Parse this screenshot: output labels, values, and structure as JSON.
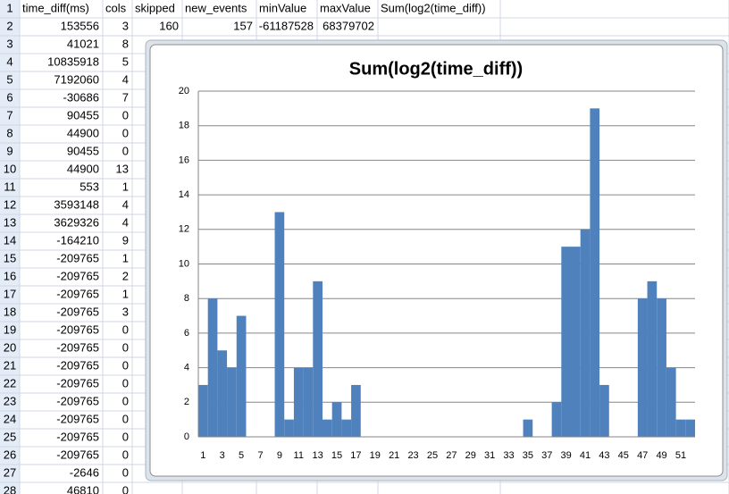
{
  "sheet": {
    "rows": [
      {
        "number": 1,
        "cells": [
          "time_diff(ms)",
          "cols",
          "skipped",
          "new_events",
          "minValue",
          "maxValue",
          "Sum(log2(time_diff))"
        ]
      },
      {
        "number": 2,
        "cells": [
          153556,
          3,
          160,
          157,
          -61187528,
          68379702
        ]
      },
      {
        "number": 3,
        "cells": [
          41021,
          8
        ]
      },
      {
        "number": 4,
        "cells": [
          10835918,
          5
        ]
      },
      {
        "number": 5,
        "cells": [
          7192060,
          4
        ]
      },
      {
        "number": 6,
        "cells": [
          -30686,
          7
        ]
      },
      {
        "number": 7,
        "cells": [
          90455,
          0
        ]
      },
      {
        "number": 8,
        "cells": [
          44900,
          0
        ]
      },
      {
        "number": 9,
        "cells": [
          90455,
          0
        ]
      },
      {
        "number": 10,
        "cells": [
          44900,
          13
        ]
      },
      {
        "number": 11,
        "cells": [
          553,
          1
        ]
      },
      {
        "number": 12,
        "cells": [
          3593148,
          4
        ]
      },
      {
        "number": 13,
        "cells": [
          3629326,
          4
        ]
      },
      {
        "number": 14,
        "cells": [
          -164210,
          9
        ]
      },
      {
        "number": 15,
        "cells": [
          -209765,
          1
        ]
      },
      {
        "number": 16,
        "cells": [
          -209765,
          2
        ]
      },
      {
        "number": 17,
        "cells": [
          -209765,
          1
        ]
      },
      {
        "number": 18,
        "cells": [
          -209765,
          3
        ]
      },
      {
        "number": 19,
        "cells": [
          -209765,
          0
        ]
      },
      {
        "number": 20,
        "cells": [
          -209765,
          0
        ]
      },
      {
        "number": 21,
        "cells": [
          -209765,
          0
        ]
      },
      {
        "number": 22,
        "cells": [
          -209765,
          0
        ]
      },
      {
        "number": 23,
        "cells": [
          -209765,
          0
        ]
      },
      {
        "number": 24,
        "cells": [
          -209765,
          0
        ]
      },
      {
        "number": 25,
        "cells": [
          -209765,
          0
        ]
      },
      {
        "number": 26,
        "cells": [
          -209765,
          0
        ]
      },
      {
        "number": 27,
        "cells": [
          -2646,
          0
        ]
      },
      {
        "number": 28,
        "cells": [
          46810,
          0
        ]
      }
    ]
  },
  "chart_data": {
    "type": "bar",
    "title": "Sum(log2(time_diff))",
    "categories": [
      1,
      null,
      3,
      null,
      5,
      null,
      7,
      null,
      9,
      null,
      11,
      null,
      13,
      null,
      15,
      null,
      17,
      null,
      19,
      null,
      21,
      null,
      23,
      null,
      25,
      null,
      27,
      null,
      29,
      null,
      31,
      null,
      33,
      null,
      35,
      null,
      37,
      null,
      39,
      null,
      41,
      null,
      43,
      null,
      45,
      null,
      47,
      null,
      49,
      null,
      51,
      null
    ],
    "values": [
      3,
      8,
      5,
      4,
      7,
      0,
      0,
      0,
      13,
      1,
      4,
      4,
      9,
      1,
      2,
      1,
      3,
      0,
      0,
      0,
      0,
      0,
      0,
      0,
      0,
      0,
      0,
      0,
      0,
      0,
      0,
      0,
      0,
      0,
      1,
      0,
      0,
      2,
      11,
      11,
      12,
      19,
      3,
      0,
      0,
      0,
      8,
      9,
      8,
      4,
      1,
      1
    ],
    "color": "#4f81bd",
    "ylim": [
      0,
      20
    ],
    "yticks": [
      0,
      2,
      4,
      6,
      8,
      10,
      12,
      14,
      16,
      18,
      20
    ],
    "grid": true
  }
}
